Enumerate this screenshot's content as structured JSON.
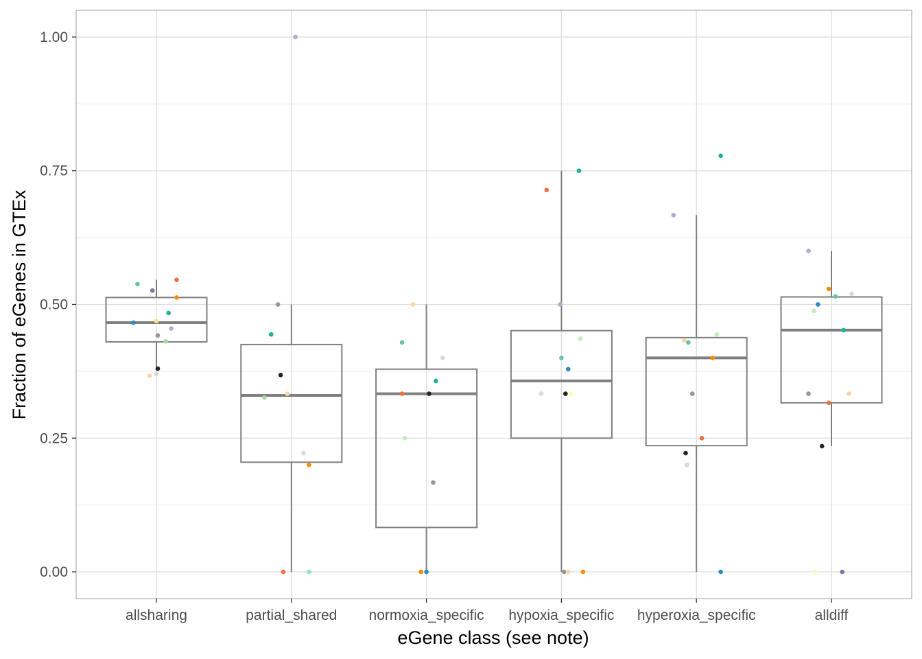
{
  "chart_data": {
    "type": "boxplot",
    "xlabel": "eGene class (see note)",
    "ylabel": "Fraction of eGenes in GTEx",
    "ylim": [
      -0.05,
      1.05
    ],
    "y_ticks": [
      0,
      0.25,
      0.5,
      0.75,
      1.0
    ],
    "y_tick_labels": [
      "0.00",
      "0.25",
      "0.50",
      "0.75",
      "1.00"
    ],
    "grid": true,
    "categories": [
      "allsharing",
      "partial_shared",
      "normoxia_specific",
      "hypoxia_specific",
      "hyperoxia_specific",
      "alldiff"
    ],
    "boxes": [
      {
        "category": "allsharing",
        "lower_whisker": 0.38,
        "q1": 0.43,
        "median": 0.466,
        "q3": 0.513,
        "upper_whisker": 0.546
      },
      {
        "category": "partial_shared",
        "lower_whisker": 0.0,
        "q1": 0.205,
        "median": 0.33,
        "q3": 0.425,
        "upper_whisker": 0.5
      },
      {
        "category": "normoxia_specific",
        "lower_whisker": 0.0,
        "q1": 0.083,
        "median": 0.333,
        "q3": 0.379,
        "upper_whisker": 0.5
      },
      {
        "category": "hypoxia_specific",
        "lower_whisker": 0.0,
        "q1": 0.25,
        "median": 0.357,
        "q3": 0.451,
        "upper_whisker": 0.75
      },
      {
        "category": "hyperoxia_specific",
        "lower_whisker": 0.0,
        "q1": 0.236,
        "median": 0.4,
        "q3": 0.438,
        "upper_whisker": 0.667
      },
      {
        "category": "alldiff",
        "lower_whisker": 0.235,
        "q1": 0.316,
        "median": 0.452,
        "q3": 0.514,
        "upper_whisker": 0.6
      }
    ],
    "points": [
      {
        "category": "allsharing",
        "jitter": -0.14,
        "y": 0.538,
        "color": "#66c2a5"
      },
      {
        "category": "allsharing",
        "jitter": -0.03,
        "y": 0.526,
        "color": "#8073ac"
      },
      {
        "category": "allsharing",
        "jitter": 0.15,
        "y": 0.546,
        "color": "#f46d43"
      },
      {
        "category": "allsharing",
        "jitter": 0.15,
        "y": 0.513,
        "color": "#ff8c00"
      },
      {
        "category": "allsharing",
        "jitter": 0.09,
        "y": 0.484,
        "color": "#1ab394"
      },
      {
        "category": "allsharing",
        "jitter": -0.17,
        "y": 0.466,
        "color": "#2b8cbe"
      },
      {
        "category": "allsharing",
        "jitter": 0.0,
        "y": 0.469,
        "color": "#fee08b"
      },
      {
        "category": "allsharing",
        "jitter": 0.11,
        "y": 0.455,
        "color": "#b2abd2"
      },
      {
        "category": "allsharing",
        "jitter": 0.01,
        "y": 0.442,
        "color": "#969696"
      },
      {
        "category": "allsharing",
        "jitter": 0.07,
        "y": 0.431,
        "color": "#a6dba0"
      },
      {
        "category": "allsharing",
        "jitter": 0.01,
        "y": 0.38,
        "color": "#252525"
      },
      {
        "category": "allsharing",
        "jitter": -0.05,
        "y": 0.367,
        "color": "#fdd49e"
      },
      {
        "category": "allsharing",
        "jitter": 0.0,
        "y": 0.37,
        "color": "#d9d9d9"
      },
      {
        "category": "partial_shared",
        "jitter": 0.03,
        "y": 1.0,
        "color": "#b2abd2"
      },
      {
        "category": "partial_shared",
        "jitter": -0.1,
        "y": 0.5,
        "color": "#969696"
      },
      {
        "category": "partial_shared",
        "jitter": -0.15,
        "y": 0.444,
        "color": "#1ab394"
      },
      {
        "category": "partial_shared",
        "jitter": -0.08,
        "y": 0.368,
        "color": "#252525"
      },
      {
        "category": "partial_shared",
        "jitter": -0.03,
        "y": 0.333,
        "color": "#fdd49e"
      },
      {
        "category": "partial_shared",
        "jitter": -0.2,
        "y": 0.326,
        "color": "#a6dba0"
      },
      {
        "category": "partial_shared",
        "jitter": 0.09,
        "y": 0.222,
        "color": "#d9d9d9"
      },
      {
        "category": "partial_shared",
        "jitter": 0.13,
        "y": 0.2,
        "color": "#ff8c00"
      },
      {
        "category": "partial_shared",
        "jitter": -0.06,
        "y": 0.0,
        "color": "#f46d43"
      },
      {
        "category": "partial_shared",
        "jitter": 0.13,
        "y": 0.0,
        "color": "#99e2d0"
      },
      {
        "category": "normoxia_specific",
        "jitter": -0.1,
        "y": 0.5,
        "color": "#fdd49e"
      },
      {
        "category": "normoxia_specific",
        "jitter": -0.18,
        "y": 0.429,
        "color": "#66c2a5"
      },
      {
        "category": "normoxia_specific",
        "jitter": 0.12,
        "y": 0.4,
        "color": "#d9d9d9"
      },
      {
        "category": "normoxia_specific",
        "jitter": 0.07,
        "y": 0.357,
        "color": "#1ab394"
      },
      {
        "category": "normoxia_specific",
        "jitter": -0.18,
        "y": 0.333,
        "color": "#f46d43"
      },
      {
        "category": "normoxia_specific",
        "jitter": 0.02,
        "y": 0.333,
        "color": "#252525"
      },
      {
        "category": "normoxia_specific",
        "jitter": -0.16,
        "y": 0.25,
        "color": "#c7e9c0"
      },
      {
        "category": "normoxia_specific",
        "jitter": 0.05,
        "y": 0.167,
        "color": "#969696"
      },
      {
        "category": "normoxia_specific",
        "jitter": -0.04,
        "y": 0.0,
        "color": "#ff8c00"
      },
      {
        "category": "normoxia_specific",
        "jitter": 0.0,
        "y": 0.0,
        "color": "#2b8cbe"
      },
      {
        "category": "hypoxia_specific",
        "jitter": -0.11,
        "y": 0.714,
        "color": "#f46d43"
      },
      {
        "category": "hypoxia_specific",
        "jitter": 0.13,
        "y": 0.75,
        "color": "#1ab394"
      },
      {
        "category": "hypoxia_specific",
        "jitter": -0.01,
        "y": 0.5,
        "color": "#b2abd2"
      },
      {
        "category": "hypoxia_specific",
        "jitter": 0.14,
        "y": 0.436,
        "color": "#c7e9c0"
      },
      {
        "category": "hypoxia_specific",
        "jitter": 0.0,
        "y": 0.4,
        "color": "#66c2a5"
      },
      {
        "category": "hypoxia_specific",
        "jitter": 0.05,
        "y": 0.379,
        "color": "#2b8cbe"
      },
      {
        "category": "hypoxia_specific",
        "jitter": -0.15,
        "y": 0.333,
        "color": "#d9d9d9"
      },
      {
        "category": "hypoxia_specific",
        "jitter": 0.03,
        "y": 0.333,
        "color": "#252525"
      },
      {
        "category": "hypoxia_specific",
        "jitter": 0.07,
        "y": 0.333,
        "color": "#ffffb3"
      },
      {
        "category": "hypoxia_specific",
        "jitter": 0.02,
        "y": 0.0,
        "color": "#969696"
      },
      {
        "category": "hypoxia_specific",
        "jitter": 0.05,
        "y": 0.0,
        "color": "#fdd49e"
      },
      {
        "category": "hypoxia_specific",
        "jitter": 0.16,
        "y": 0.0,
        "color": "#ff8c00"
      },
      {
        "category": "hyperoxia_specific",
        "jitter": 0.18,
        "y": 0.778,
        "color": "#1ab394"
      },
      {
        "category": "hyperoxia_specific",
        "jitter": -0.17,
        "y": 0.667,
        "color": "#b2abd2"
      },
      {
        "category": "hyperoxia_specific",
        "jitter": 0.15,
        "y": 0.444,
        "color": "#c7e9c0"
      },
      {
        "category": "hyperoxia_specific",
        "jitter": -0.09,
        "y": 0.433,
        "color": "#fdd49e"
      },
      {
        "category": "hyperoxia_specific",
        "jitter": -0.06,
        "y": 0.429,
        "color": "#66c2a5"
      },
      {
        "category": "hyperoxia_specific",
        "jitter": 0.12,
        "y": 0.4,
        "color": "#ff8c00"
      },
      {
        "category": "hyperoxia_specific",
        "jitter": -0.03,
        "y": 0.333,
        "color": "#969696"
      },
      {
        "category": "hyperoxia_specific",
        "jitter": 0.04,
        "y": 0.25,
        "color": "#f46d43"
      },
      {
        "category": "hyperoxia_specific",
        "jitter": -0.08,
        "y": 0.222,
        "color": "#252525"
      },
      {
        "category": "hyperoxia_specific",
        "jitter": -0.07,
        "y": 0.2,
        "color": "#d9d9d9"
      },
      {
        "category": "hyperoxia_specific",
        "jitter": 0.18,
        "y": 0.0,
        "color": "#2b8cbe"
      },
      {
        "category": "alldiff",
        "jitter": -0.17,
        "y": 0.6,
        "color": "#b2abd2"
      },
      {
        "category": "alldiff",
        "jitter": -0.02,
        "y": 0.529,
        "color": "#ff8c00"
      },
      {
        "category": "alldiff",
        "jitter": 0.15,
        "y": 0.52,
        "color": "#d9d9d9"
      },
      {
        "category": "alldiff",
        "jitter": 0.03,
        "y": 0.515,
        "color": "#66c2a5"
      },
      {
        "category": "alldiff",
        "jitter": -0.1,
        "y": 0.5,
        "color": "#2b8cbe"
      },
      {
        "category": "alldiff",
        "jitter": -0.13,
        "y": 0.488,
        "color": "#c7e9c0"
      },
      {
        "category": "alldiff",
        "jitter": 0.09,
        "y": 0.452,
        "color": "#1ab394"
      },
      {
        "category": "alldiff",
        "jitter": -0.17,
        "y": 0.333,
        "color": "#969696"
      },
      {
        "category": "alldiff",
        "jitter": 0.13,
        "y": 0.333,
        "color": "#fdd49e"
      },
      {
        "category": "alldiff",
        "jitter": -0.02,
        "y": 0.316,
        "color": "#f46d43"
      },
      {
        "category": "alldiff",
        "jitter": -0.07,
        "y": 0.235,
        "color": "#252525"
      },
      {
        "category": "alldiff",
        "jitter": -0.12,
        "y": 0.0,
        "color": "#fff7bc"
      },
      {
        "category": "alldiff",
        "jitter": 0.08,
        "y": 0.0,
        "color": "#8073ac"
      }
    ],
    "box_color": "#7f7f7f",
    "median_color": "#7f7f7f"
  }
}
